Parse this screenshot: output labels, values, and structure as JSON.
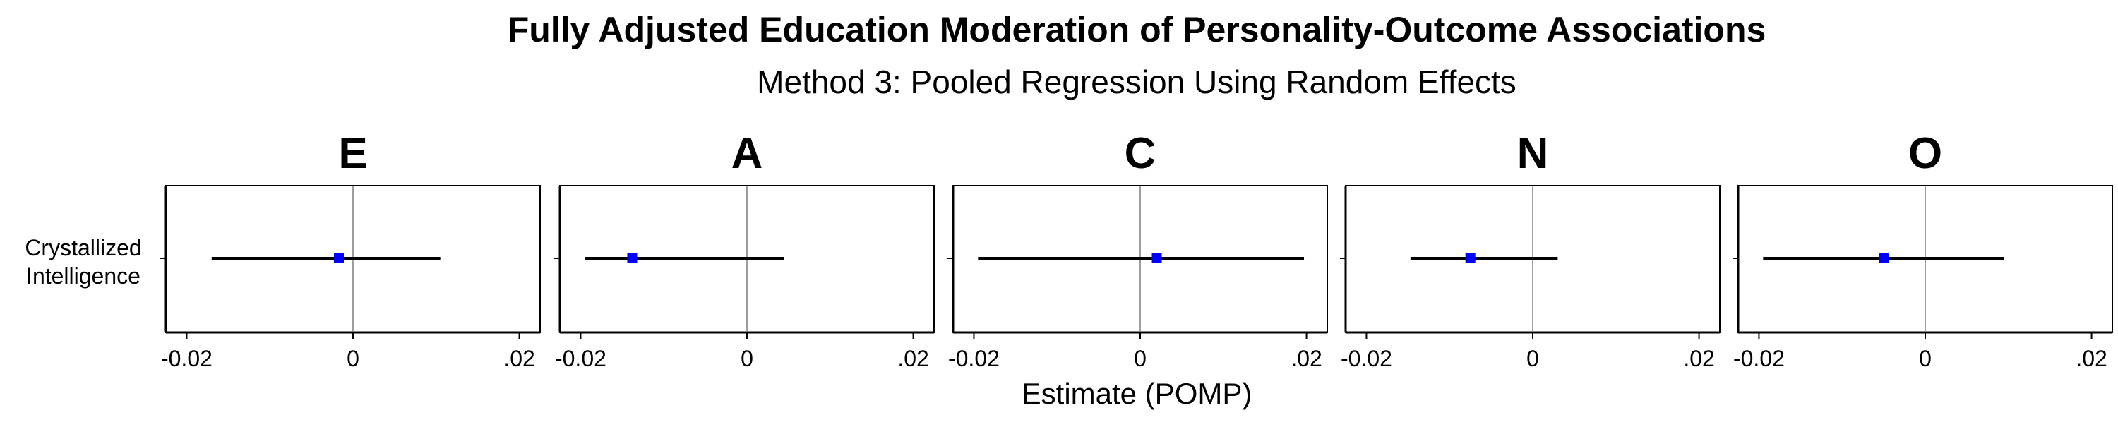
{
  "chart_data": {
    "type": "forest",
    "title": "Fully Adjusted Education Moderation of Personality-Outcome Associations",
    "subtitle": "Method 3: Pooled Regression Using Random Effects",
    "xlabel": "Estimate (POMP)",
    "ylabel": "",
    "xlim": [
      -0.0225,
      0.0225
    ],
    "x_ticks": [
      {
        "value": -0.02,
        "label": "-0.02"
      },
      {
        "value": 0,
        "label": "0"
      },
      {
        "value": 0.02,
        "label": ".02"
      }
    ],
    "y_categories": [
      {
        "line1": "Crystallized",
        "line2": "Intelligence"
      }
    ],
    "reference_line": 0,
    "grid": false,
    "colors": {
      "point": "#0000ff",
      "interval": "#000000",
      "reference": "#7f7f7f",
      "frame": "#000000"
    },
    "panels": [
      {
        "name": "E",
        "estimate": -0.0017,
        "lower": -0.017,
        "upper": 0.0105
      },
      {
        "name": "A",
        "estimate": -0.0138,
        "lower": -0.0195,
        "upper": 0.0045
      },
      {
        "name": "C",
        "estimate": 0.002,
        "lower": -0.0195,
        "upper": 0.0197
      },
      {
        "name": "N",
        "estimate": -0.0075,
        "lower": -0.0147,
        "upper": 0.003
      },
      {
        "name": "O",
        "estimate": -0.005,
        "lower": -0.0195,
        "upper": 0.0095
      }
    ]
  }
}
